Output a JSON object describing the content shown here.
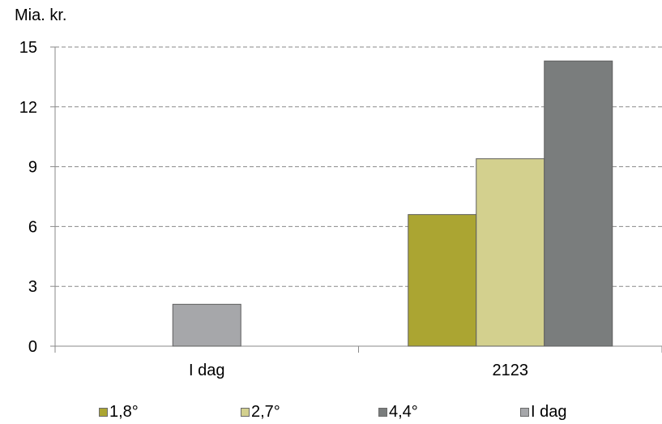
{
  "chart_data": {
    "type": "bar",
    "title": "",
    "xlabel": "",
    "ylabel": "Mia. kr.",
    "ylim": [
      0,
      15
    ],
    "yticks": [
      0,
      3,
      6,
      9,
      12,
      15
    ],
    "grid": true,
    "legend_position": "bottom",
    "categories": [
      "I dag",
      "2123"
    ],
    "series": [
      {
        "name": "1,8°",
        "color": "#aba532",
        "values": [
          null,
          6.6
        ]
      },
      {
        "name": "2,7°",
        "color": "#d3d08e",
        "values": [
          null,
          9.4
        ]
      },
      {
        "name": "4,4°",
        "color": "#7a7d7d",
        "values": [
          null,
          14.3
        ]
      },
      {
        "name": "I dag",
        "color": "#a6a7aa",
        "values": [
          2.1,
          null
        ]
      }
    ]
  }
}
